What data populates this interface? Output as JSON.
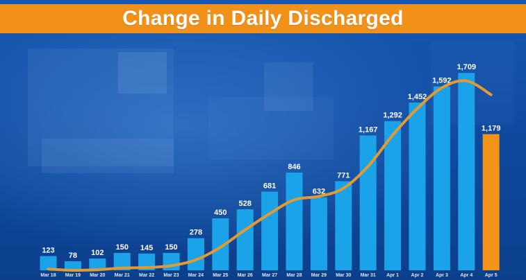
{
  "chart_data": {
    "type": "bar",
    "title": "Change in Daily Discharged",
    "xlabel": "",
    "ylabel": "",
    "categories": [
      "Mar 18",
      "Mar 19",
      "Mar 20",
      "Mar 21",
      "Mar 22",
      "Mar 23",
      "Mar 24",
      "Mar 25",
      "Mar 26",
      "Mar 27",
      "Mar 28",
      "Mar 29",
      "Mar 30",
      "Mar 31",
      "Apr 1",
      "Apr 2",
      "Apr 3",
      "Apr 4",
      "Apr 5"
    ],
    "values": [
      123,
      78,
      102,
      150,
      145,
      150,
      278,
      450,
      528,
      681,
      846,
      632,
      771,
      1167,
      1292,
      1452,
      1592,
      1709,
      1179
    ],
    "value_labels": [
      "123",
      "78",
      "102",
      "150",
      "145",
      "150",
      "278",
      "450",
      "528",
      "681",
      "846",
      "632",
      "771",
      "1,167",
      "1,292",
      "1,452",
      "1,592",
      "1,709",
      "1,179"
    ],
    "trend_line": [
      10,
      0,
      5,
      20,
      24,
      40,
      90,
      200,
      350,
      490,
      610,
      640,
      710,
      900,
      1170,
      1400,
      1580,
      1640,
      1520
    ],
    "ylim": [
      0,
      1800
    ],
    "grid": false,
    "legend": "none",
    "colors": {
      "bar": "#1ba3ea",
      "highlight_bar": "#f39318",
      "trend": "#e39a2e",
      "title_bg": "#f29118",
      "title_text": "#ffffff"
    },
    "highlight_category": "Apr 5"
  }
}
